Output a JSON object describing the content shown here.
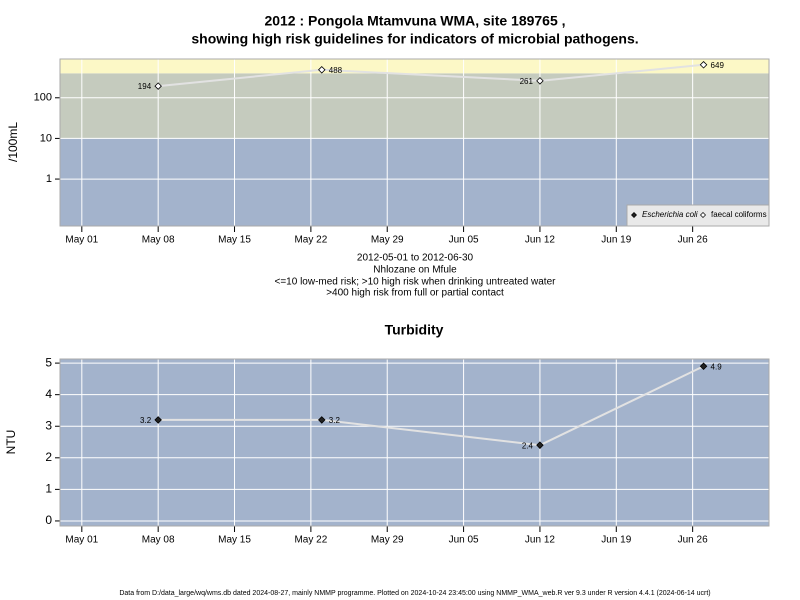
{
  "chart_data": [
    {
      "type": "line",
      "title": [
        "2012 : Pongola Mtamvuna WMA, site 189765 ,",
        "showing high risk guidelines for indicators of microbial pathogens."
      ],
      "subtitle": [
        "2012-05-01 to 2012-06-30",
        "Nhlozane on Mfule",
        "<=10 low-med risk; >10 high risk when drinking untreated water",
        ">400 high risk from full or partial contact"
      ],
      "ylabel": "/100mL",
      "log_y": true,
      "x": [
        "2012-05-08",
        "2012-05-23",
        "2012-06-12",
        "2012-06-27"
      ],
      "series": [
        {
          "name": "Escherichia coli",
          "color": "#222222",
          "marker": "filled-diamond",
          "values": [
            null,
            null,
            null,
            null
          ]
        },
        {
          "name": "faecal coliforms",
          "color": "#ffffff",
          "marker": "open-diamond",
          "values": [
            194,
            488,
            261,
            649
          ]
        }
      ],
      "guidelines": [
        10,
        400
      ],
      "band_colors": [
        "#a3b3cc",
        "#c5cbbe",
        "#fcf8c6"
      ],
      "xlim": [
        "2012-04-29",
        "2012-07-03"
      ],
      "xticks": [
        {
          "value": "2012-05-01",
          "label": "May 01"
        },
        {
          "value": "2012-05-08",
          "label": "May 08"
        },
        {
          "value": "2012-05-15",
          "label": "May 15"
        },
        {
          "value": "2012-05-22",
          "label": "May 22"
        },
        {
          "value": "2012-05-29",
          "label": "May 29"
        },
        {
          "value": "2012-06-05",
          "label": "Jun 05"
        },
        {
          "value": "2012-06-12",
          "label": "Jun 12"
        },
        {
          "value": "2012-06-19",
          "label": "Jun 19"
        },
        {
          "value": "2012-06-26",
          "label": "Jun 26"
        }
      ],
      "ylim": [
        0.07,
        900
      ],
      "yticks": [
        1,
        10,
        100
      ],
      "grid": true,
      "legend": "bottom-right"
    },
    {
      "type": "line",
      "title": "Turbidity",
      "ylabel": "NTU",
      "x": [
        "2012-05-08",
        "2012-05-23",
        "2012-06-12",
        "2012-06-27"
      ],
      "series": [
        {
          "name": "Turbidity",
          "color": "#222222",
          "marker": "filled-diamond",
          "values": [
            3.2,
            3.2,
            2.4,
            4.9
          ]
        }
      ],
      "band_colors": [
        "#a3b3cc"
      ],
      "xlim": [
        "2012-04-29",
        "2012-07-03"
      ],
      "xticks": [
        {
          "value": "2012-05-01",
          "label": "May 01"
        },
        {
          "value": "2012-05-08",
          "label": "May 08"
        },
        {
          "value": "2012-05-15",
          "label": "May 15"
        },
        {
          "value": "2012-05-22",
          "label": "May 22"
        },
        {
          "value": "2012-05-29",
          "label": "May 29"
        },
        {
          "value": "2012-06-05",
          "label": "Jun 05"
        },
        {
          "value": "2012-06-12",
          "label": "Jun 12"
        },
        {
          "value": "2012-06-19",
          "label": "Jun 19"
        },
        {
          "value": "2012-06-26",
          "label": "Jun 26"
        }
      ],
      "ylim": [
        -0.16,
        5.13
      ],
      "yticks": [
        0,
        1,
        2,
        3,
        4,
        5
      ],
      "grid": true
    }
  ],
  "footer": "Data from D:/data_large/wq/wms.db dated 2024-08-27, mainly NMMP programme. Plotted on 2024-10-24 23:45:00 using NMMP_WMA_web.R ver 9.3 under R version 4.4.1 (2024-06-14 ucrt)"
}
